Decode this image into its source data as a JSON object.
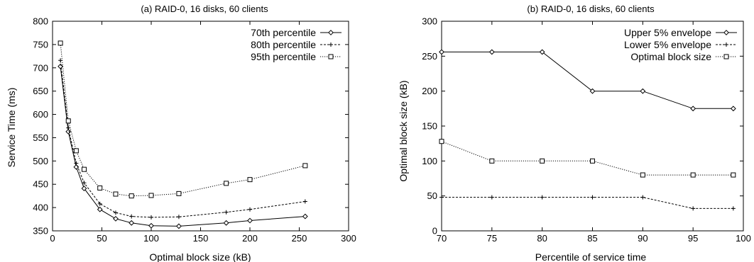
{
  "chart_data": [
    {
      "type": "line",
      "title": "(a) RAID-0, 16 disks, 60 clients",
      "xlabel": "Optimal block size (kB)",
      "ylabel": "Service Time (ms)",
      "xlim": [
        0,
        300
      ],
      "ylim": [
        350,
        800
      ],
      "xticks": [
        "0",
        "50",
        "100",
        "150",
        "200",
        "250",
        "300"
      ],
      "yticks": [
        "350",
        "400",
        "450",
        "500",
        "550",
        "600",
        "650",
        "700",
        "750",
        "800"
      ],
      "grid": false,
      "legend_position": "top-right",
      "series": [
        {
          "name": "70th percentile",
          "style": "solid",
          "marker": "diamond",
          "x": [
            8,
            16,
            24,
            32,
            48,
            64,
            80,
            100,
            128,
            176,
            200,
            256
          ],
          "y": [
            703,
            563,
            487,
            441,
            396,
            376,
            367,
            361,
            360,
            367,
            372,
            381
          ]
        },
        {
          "name": "80th percentile",
          "style": "dashed",
          "marker": "plus",
          "x": [
            8,
            16,
            24,
            32,
            48,
            64,
            80,
            100,
            128,
            176,
            200,
            256
          ],
          "y": [
            716,
            571,
            495,
            453,
            408,
            389,
            381,
            379,
            380,
            390,
            396,
            413
          ]
        },
        {
          "name": "95th percentile",
          "style": "dotted",
          "marker": "square",
          "x": [
            8,
            16,
            24,
            32,
            48,
            64,
            80,
            100,
            128,
            176,
            200,
            256
          ],
          "y": [
            753,
            586,
            522,
            482,
            442,
            429,
            425,
            426,
            430,
            452,
            460,
            490
          ]
        }
      ]
    },
    {
      "type": "line",
      "title": "(b)  RAID-0, 16 disks, 60 clients",
      "xlabel": "Percentile of service time",
      "ylabel": "Optimal block size (kB)",
      "xlim": [
        70,
        100
      ],
      "ylim": [
        0,
        300
      ],
      "xticks": [
        "70",
        "75",
        "80",
        "85",
        "90",
        "95",
        "100"
      ],
      "yticks": [
        "0",
        "50",
        "100",
        "150",
        "200",
        "250",
        "300"
      ],
      "grid": false,
      "legend_position": "top-right",
      "series": [
        {
          "name": "Upper 5% envelope",
          "style": "solid",
          "marker": "diamond",
          "x": [
            70,
            75,
            80,
            85,
            90,
            95,
            99
          ],
          "y": [
            256,
            256,
            256,
            200,
            200,
            175,
            175
          ]
        },
        {
          "name": "Lower 5% envelope",
          "style": "dashed",
          "marker": "plus",
          "x": [
            70,
            75,
            80,
            85,
            90,
            95,
            99
          ],
          "y": [
            48,
            48,
            48,
            48,
            48,
            32,
            32
          ]
        },
        {
          "name": "Optimal block size",
          "style": "dotted",
          "marker": "square",
          "x": [
            70,
            75,
            80,
            85,
            90,
            95,
            99
          ],
          "y": [
            128,
            100,
            100,
            100,
            80,
            80,
            80
          ]
        }
      ]
    }
  ]
}
